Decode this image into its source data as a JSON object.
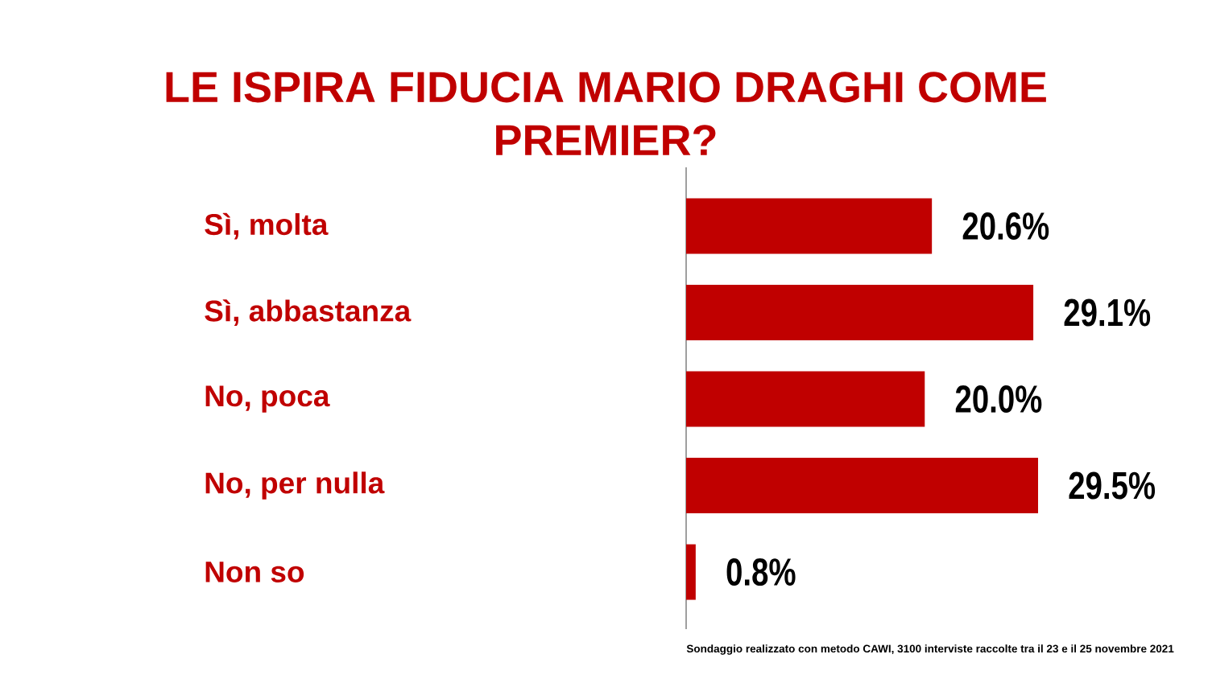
{
  "chart_data": {
    "type": "bar",
    "orientation": "horizontal",
    "title": "LE ISPIRA FIDUCIA MARIO DRAGHI COME PREMIER?",
    "categories": [
      "Sì, molta",
      "Sì, abbastanza",
      "No, poca",
      "No, per nulla",
      "Non so"
    ],
    "values": [
      20.6,
      29.1,
      20.0,
      29.5,
      0.8
    ],
    "color": "#c00000",
    "value_labels": [
      "20.6%",
      "29.1%",
      "20.0%",
      "29.5%",
      "0.8%"
    ],
    "tick_labels": "y",
    "annotations": [
      "Sondaggio realizzato con metodo CAWI, 3100 interviste raccolte tra il 23 e il 25 novembre 2021"
    ]
  }
}
